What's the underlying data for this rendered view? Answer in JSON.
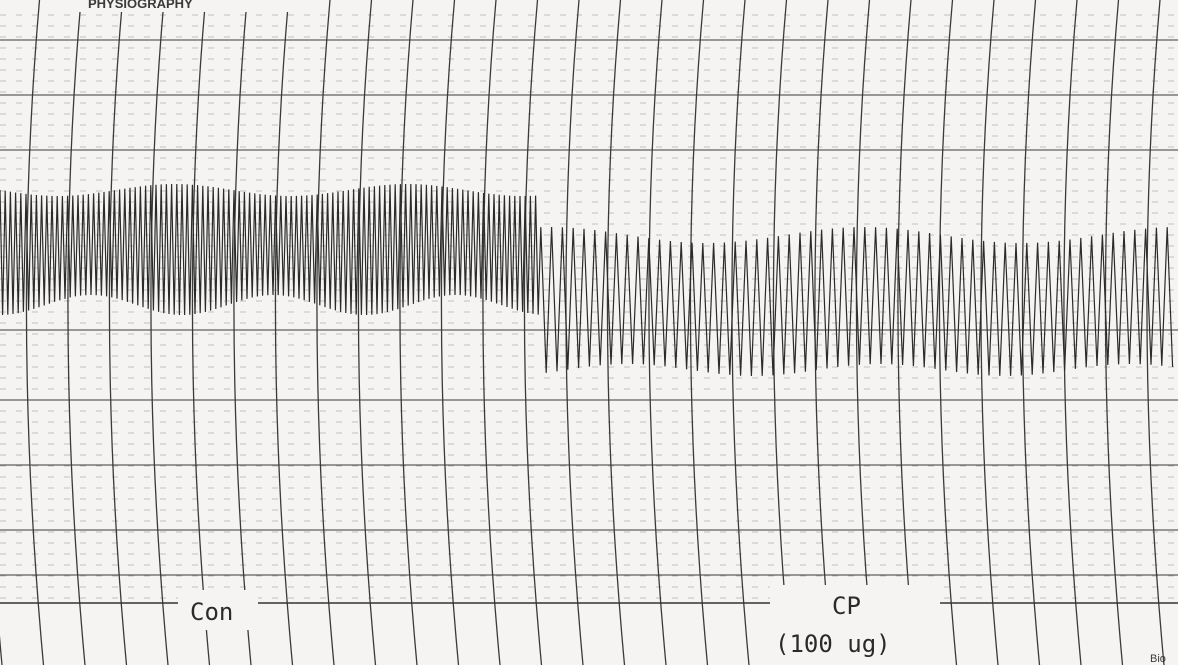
{
  "header": {
    "title": "PHYSIOGRAPHY"
  },
  "labels": {
    "control": "Con",
    "drug": "CP",
    "dose": "(100 ug)",
    "corner": "Bio"
  }
}
